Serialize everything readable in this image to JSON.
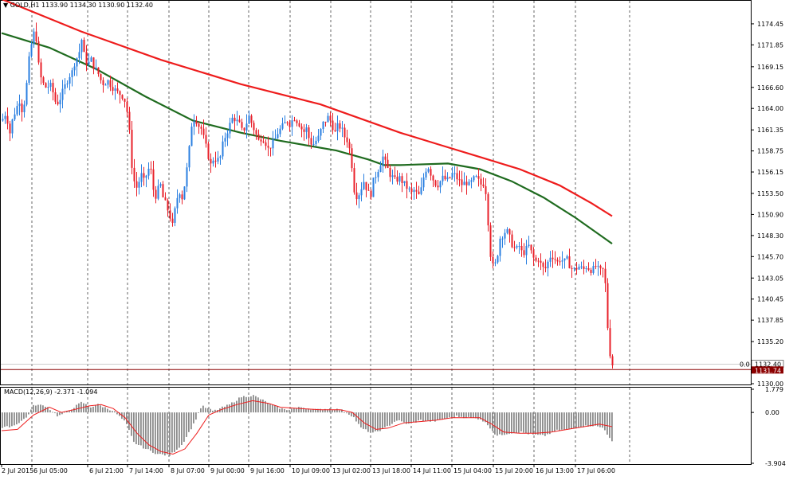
{
  "header": {
    "menu_glyph": "▼",
    "symbol": "GOLD,H1",
    "ohlc": "1133.90 1134.30 1130.90 1132.40"
  },
  "macd_header": "MACD(12,26,9) -2.371 -1.094",
  "colors": {
    "bull": "#2a7fe0",
    "bear": "#e8202a",
    "ma_slow": "#ee1c1c",
    "ma_fast": "#1f6b1f",
    "grid": "#000000",
    "macd_hist": "#8c8c8c",
    "macd_signal": "#ee1c1c",
    "current_line": "#8b0000"
  },
  "chart_data": [
    {
      "type": "candlestick",
      "timeframe": "H1",
      "ylim": [
        1130.0,
        1177.0
      ],
      "yticks": [
        "1174.45",
        "1171.85",
        "1169.15",
        "1166.60",
        "1164.00",
        "1161.35",
        "1158.75",
        "1156.15",
        "1153.50",
        "1150.90",
        "1148.30",
        "1145.70",
        "1143.05",
        "1140.45",
        "1137.85",
        "1135.20",
        "1130.00"
      ],
      "xticks": [
        "2 Jul 2015",
        "6 Jul 05:00",
        "6 Jul 21:00",
        "7 Jul 14:00",
        "8 Jul 07:00",
        "9 Jul 00:00",
        "9 Jul 16:00",
        "10 Jul 09:00",
        "13 Jul 02:00",
        "13 Jul 18:00",
        "14 Jul 11:00",
        "15 Jul 04:00",
        "15 Jul 20:00",
        "16 Jul 13:00",
        "17 Jul 06:00"
      ],
      "price_labels": {
        "bid": "1132.40",
        "current": "1131.74",
        "zero": "0.0"
      },
      "close_path": [
        [
          0,
          1162.5
        ],
        [
          5,
          1163.5
        ],
        [
          10,
          1161
        ],
        [
          14,
          1163
        ],
        [
          18,
          1164
        ],
        [
          22,
          1165
        ],
        [
          26,
          1163.5
        ],
        [
          30,
          1166
        ],
        [
          34,
          1170
        ],
        [
          38,
          1172.5
        ],
        [
          42,
          1174
        ],
        [
          45,
          1170
        ],
        [
          48,
          1168
        ],
        [
          52,
          1167
        ],
        [
          56,
          1166.5
        ],
        [
          60,
          1167
        ],
        [
          64,
          1166
        ],
        [
          68,
          1164.5
        ],
        [
          72,
          1165
        ],
        [
          76,
          1166
        ],
        [
          80,
          1167
        ],
        [
          84,
          1168
        ],
        [
          88,
          1168.5
        ],
        [
          92,
          1170
        ],
        [
          96,
          1170.5
        ],
        [
          100,
          1172.5
        ],
        [
          104,
          1170
        ],
        [
          108,
          1169.5
        ],
        [
          112,
          1170
        ],
        [
          116,
          1169
        ],
        [
          120,
          1168.5
        ],
        [
          124,
          1167.5
        ],
        [
          128,
          1167
        ],
        [
          132,
          1167.5
        ],
        [
          136,
          1167
        ],
        [
          140,
          1166.5
        ],
        [
          144,
          1166
        ],
        [
          148,
          1165.8
        ],
        [
          152,
          1165.5
        ],
        [
          156,
          1164.5
        ],
        [
          160,
          1161
        ],
        [
          163,
          1157
        ],
        [
          166,
          1155
        ],
        [
          170,
          1154
        ],
        [
          174,
          1156
        ],
        [
          178,
          1155
        ],
        [
          182,
          1156
        ],
        [
          186,
          1157
        ],
        [
          190,
          1154
        ],
        [
          194,
          1153
        ],
        [
          198,
          1155
        ],
        [
          202,
          1153
        ],
        [
          206,
          1152
        ],
        [
          210,
          1151
        ],
        [
          214,
          1149.5
        ],
        [
          218,
          1152
        ],
        [
          222,
          1154
        ],
        [
          226,
          1153
        ],
        [
          230,
          1155
        ],
        [
          234,
          1158
        ],
        [
          238,
          1162
        ],
        [
          242,
          1163
        ],
        [
          246,
          1162
        ],
        [
          250,
          1161.5
        ],
        [
          254,
          1160
        ],
        [
          258,
          1158.5
        ],
        [
          262,
          1157
        ],
        [
          266,
          1158
        ],
        [
          270,
          1157.5
        ],
        [
          274,
          1158
        ],
        [
          278,
          1160
        ],
        [
          282,
          1161
        ],
        [
          286,
          1162
        ],
        [
          290,
          1163
        ],
        [
          294,
          1162.5
        ],
        [
          298,
          1162
        ],
        [
          302,
          1161
        ],
        [
          306,
          1162
        ],
        [
          310,
          1163
        ],
        [
          314,
          1162
        ],
        [
          318,
          1161
        ],
        [
          322,
          1160
        ],
        [
          326,
          1160.5
        ],
        [
          330,
          1160
        ],
        [
          334,
          1159
        ],
        [
          338,
          1159.5
        ],
        [
          342,
          1160
        ],
        [
          346,
          1161
        ],
        [
          350,
          1161.5
        ],
        [
          354,
          1162
        ],
        [
          358,
          1162.5
        ],
        [
          362,
          1162
        ],
        [
          366,
          1163
        ],
        [
          370,
          1162.5
        ],
        [
          374,
          1162
        ],
        [
          378,
          1161
        ],
        [
          382,
          1161.5
        ],
        [
          386,
          1160
        ],
        [
          390,
          1159.5
        ],
        [
          394,
          1160
        ],
        [
          398,
          1160.5
        ],
        [
          402,
          1162
        ],
        [
          406,
          1162.5
        ],
        [
          410,
          1163
        ],
        [
          414,
          1162
        ],
        [
          418,
          1161
        ],
        [
          422,
          1162
        ],
        [
          426,
          1161.5
        ],
        [
          430,
          1160.5
        ],
        [
          434,
          1160
        ],
        [
          438,
          1158
        ],
        [
          442,
          1154
        ],
        [
          446,
          1153
        ],
        [
          450,
          1154
        ],
        [
          454,
          1155
        ],
        [
          458,
          1154
        ],
        [
          462,
          1153
        ],
        [
          466,
          1155
        ],
        [
          470,
          1156
        ],
        [
          474,
          1157
        ],
        [
          478,
          1158
        ],
        [
          482,
          1157
        ],
        [
          486,
          1156
        ],
        [
          490,
          1155.5
        ],
        [
          494,
          1155
        ],
        [
          498,
          1155.5
        ],
        [
          502,
          1155
        ],
        [
          506,
          1154.5
        ],
        [
          510,
          1154
        ],
        [
          514,
          1153.5
        ],
        [
          518,
          1154
        ],
        [
          522,
          1153
        ],
        [
          526,
          1154
        ],
        [
          530,
          1156
        ],
        [
          534,
          1157
        ],
        [
          538,
          1156
        ],
        [
          542,
          1155
        ],
        [
          546,
          1154.5
        ],
        [
          550,
          1155
        ],
        [
          554,
          1155.5
        ],
        [
          558,
          1155
        ],
        [
          562,
          1155.5
        ],
        [
          566,
          1156
        ],
        [
          570,
          1155.5
        ],
        [
          574,
          1155
        ],
        [
          578,
          1154.5
        ],
        [
          582,
          1155
        ],
        [
          586,
          1154.5
        ],
        [
          590,
          1155
        ],
        [
          594,
          1155.5
        ],
        [
          598,
          1155
        ],
        [
          602,
          1154.5
        ],
        [
          606,
          1155
        ],
        [
          610,
          1150
        ],
        [
          613,
          1146
        ],
        [
          617,
          1144
        ],
        [
          621,
          1145.5
        ],
        [
          625,
          1148
        ],
        [
          629,
          1148.5
        ],
        [
          633,
          1149
        ],
        [
          637,
          1148
        ],
        [
          641,
          1147
        ],
        [
          645,
          1146.5
        ],
        [
          649,
          1147
        ],
        [
          653,
          1146
        ],
        [
          657,
          1146.5
        ],
        [
          661,
          1147
        ],
        [
          665,
          1146
        ],
        [
          669,
          1145
        ],
        [
          673,
          1145.5
        ],
        [
          677,
          1144.5
        ],
        [
          681,
          1144
        ],
        [
          685,
          1145
        ],
        [
          689,
          1146
        ],
        [
          693,
          1145.5
        ],
        [
          697,
          1145
        ],
        [
          701,
          1145.5
        ],
        [
          705,
          1145
        ],
        [
          709,
          1145.3
        ],
        [
          713,
          1144.5
        ],
        [
          717,
          1144
        ],
        [
          721,
          1144.3
        ],
        [
          725,
          1144.5
        ],
        [
          729,
          1144
        ],
        [
          733,
          1144.5
        ],
        [
          737,
          1144.2
        ],
        [
          741,
          1144
        ],
        [
          745,
          1144.5
        ],
        [
          749,
          1144
        ],
        [
          753,
          1143.8
        ],
        [
          756,
          1144.5
        ],
        [
          758,
          1140
        ],
        [
          760,
          1137
        ],
        [
          762,
          1134
        ],
        [
          764,
          1133.5
        ],
        [
          766,
          1132.4
        ]
      ],
      "ma_slow": [
        [
          0,
          1177.5
        ],
        [
          100,
          1173.5
        ],
        [
          200,
          1170
        ],
        [
          300,
          1167
        ],
        [
          400,
          1164.5
        ],
        [
          500,
          1161
        ],
        [
          550,
          1159.5
        ],
        [
          600,
          1158
        ],
        [
          650,
          1156.5
        ],
        [
          700,
          1154.5
        ],
        [
          740,
          1152.3
        ],
        [
          766,
          1150.7
        ]
      ],
      "ma_fast": [
        [
          0,
          1173.3
        ],
        [
          60,
          1171.5
        ],
        [
          120,
          1168.8
        ],
        [
          180,
          1165.5
        ],
        [
          240,
          1162.5
        ],
        [
          300,
          1161
        ],
        [
          350,
          1160
        ],
        [
          420,
          1158.8
        ],
        [
          460,
          1157.7
        ],
        [
          480,
          1157
        ],
        [
          500,
          1157
        ],
        [
          560,
          1157.2
        ],
        [
          600,
          1156.5
        ],
        [
          640,
          1155
        ],
        [
          680,
          1153
        ],
        [
          720,
          1150.5
        ],
        [
          766,
          1147.3
        ]
      ]
    },
    {
      "type": "bar",
      "name": "MACD",
      "ylim": [
        -3.904,
        1.779
      ],
      "yticks": [
        "1.779",
        "0.00",
        "-3.904"
      ],
      "hist_points": [
        [
          0,
          -1.2
        ],
        [
          15,
          -1.0
        ],
        [
          30,
          -0.4
        ],
        [
          40,
          0.6
        ],
        [
          55,
          0.5
        ],
        [
          70,
          -0.3
        ],
        [
          85,
          0.2
        ],
        [
          100,
          0.8
        ],
        [
          110,
          0.4
        ],
        [
          120,
          0.6
        ],
        [
          140,
          0.1
        ],
        [
          155,
          -0.8
        ],
        [
          165,
          -2.3
        ],
        [
          180,
          -2.8
        ],
        [
          195,
          -3.2
        ],
        [
          210,
          -3.3
        ],
        [
          225,
          -2.5
        ],
        [
          240,
          -0.9
        ],
        [
          250,
          0.5
        ],
        [
          265,
          0.1
        ],
        [
          285,
          0.6
        ],
        [
          300,
          1.2
        ],
        [
          315,
          1.3
        ],
        [
          325,
          1.0
        ],
        [
          340,
          0.5
        ],
        [
          355,
          0.2
        ],
        [
          375,
          0.4
        ],
        [
          395,
          0.2
        ],
        [
          410,
          0.3
        ],
        [
          425,
          0.2
        ],
        [
          440,
          -0.3
        ],
        [
          450,
          -1.2
        ],
        [
          465,
          -1.6
        ],
        [
          480,
          -1.2
        ],
        [
          495,
          -0.6
        ],
        [
          510,
          -0.9
        ],
        [
          525,
          -0.6
        ],
        [
          540,
          -0.7
        ],
        [
          555,
          -0.5
        ],
        [
          570,
          -0.3
        ],
        [
          585,
          -0.4
        ],
        [
          600,
          -0.5
        ],
        [
          610,
          -1.0
        ],
        [
          620,
          -1.8
        ],
        [
          635,
          -1.6
        ],
        [
          650,
          -1.5
        ],
        [
          665,
          -1.7
        ],
        [
          680,
          -1.8
        ],
        [
          695,
          -1.4
        ],
        [
          710,
          -1.3
        ],
        [
          725,
          -1.1
        ],
        [
          740,
          -1.0
        ],
        [
          755,
          -1.2
        ],
        [
          762,
          -2.0
        ],
        [
          766,
          -2.371
        ]
      ],
      "signal_points": [
        [
          0,
          -1.4
        ],
        [
          20,
          -1.3
        ],
        [
          40,
          -0.2
        ],
        [
          60,
          0.4
        ],
        [
          75,
          0.0
        ],
        [
          90,
          0.2
        ],
        [
          110,
          0.5
        ],
        [
          125,
          0.6
        ],
        [
          140,
          0.3
        ],
        [
          155,
          -0.4
        ],
        [
          170,
          -1.6
        ],
        [
          185,
          -2.5
        ],
        [
          200,
          -3.0
        ],
        [
          215,
          -3.2
        ],
        [
          230,
          -2.8
        ],
        [
          245,
          -1.6
        ],
        [
          260,
          -0.2
        ],
        [
          275,
          0.2
        ],
        [
          295,
          0.6
        ],
        [
          315,
          0.9
        ],
        [
          335,
          0.7
        ],
        [
          350,
          0.4
        ],
        [
          375,
          0.3
        ],
        [
          400,
          0.2
        ],
        [
          425,
          0.2
        ],
        [
          440,
          0.0
        ],
        [
          455,
          -0.8
        ],
        [
          470,
          -1.3
        ],
        [
          485,
          -1.2
        ],
        [
          505,
          -0.8
        ],
        [
          525,
          -0.7
        ],
        [
          545,
          -0.6
        ],
        [
          565,
          -0.4
        ],
        [
          585,
          -0.4
        ],
        [
          600,
          -0.4
        ],
        [
          615,
          -0.9
        ],
        [
          630,
          -1.5
        ],
        [
          650,
          -1.6
        ],
        [
          670,
          -1.6
        ],
        [
          690,
          -1.5
        ],
        [
          710,
          -1.3
        ],
        [
          730,
          -1.1
        ],
        [
          750,
          -0.9
        ],
        [
          766,
          -1.094
        ]
      ]
    }
  ]
}
